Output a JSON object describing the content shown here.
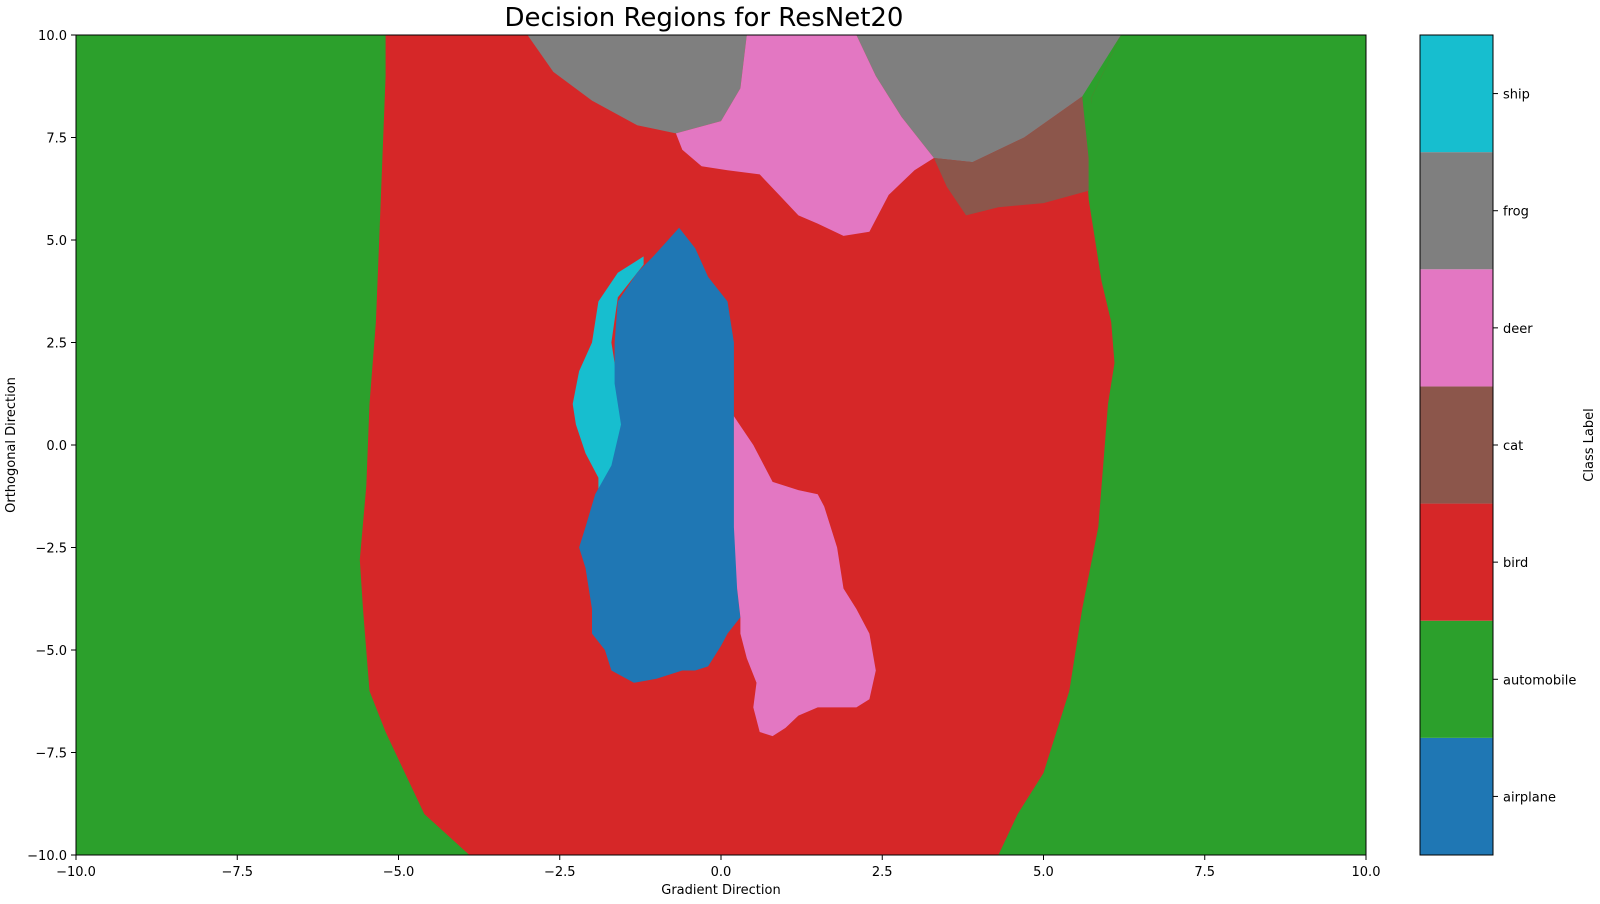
{
  "chart_data": {
    "type": "heatmap",
    "title": "Decision Regions for ResNet20",
    "xlabel": "Gradient Direction",
    "ylabel": "Orthogonal Direction",
    "xlim": [
      -10,
      10
    ],
    "ylim": [
      -10,
      10
    ],
    "x_ticks": [
      -10,
      -7.5,
      -5,
      -2.5,
      0,
      2.5,
      5,
      7.5,
      10
    ],
    "y_ticks": [
      -10,
      -7.5,
      -5,
      -2.5,
      0,
      2.5,
      5,
      7.5,
      10
    ],
    "x_tick_labels": [
      "−10.0",
      "−7.5",
      "−5.0",
      "−2.5",
      "0.0",
      "2.5",
      "5.0",
      "7.5",
      "10.0"
    ],
    "y_tick_labels": [
      "−10.0",
      "−7.5",
      "−5.0",
      "−2.5",
      "0.0",
      "2.5",
      "5.0",
      "7.5",
      "10.0"
    ],
    "grid": false,
    "colorbar": {
      "label": "Class Label",
      "classes": [
        {
          "name": "airplane",
          "color": "#1f77b4"
        },
        {
          "name": "automobile",
          "color": "#2ca02c"
        },
        {
          "name": "bird",
          "color": "#d62728"
        },
        {
          "name": "cat",
          "color": "#8c564b"
        },
        {
          "name": "deer",
          "color": "#e377c2"
        },
        {
          "name": "frog",
          "color": "#7f7f7f"
        },
        {
          "name": "ship",
          "color": "#17becf"
        }
      ]
    },
    "background_class": "automobile",
    "regions": [
      {
        "class": "bird",
        "polygon": [
          [
            -5.2,
            10
          ],
          [
            -5.2,
            9
          ],
          [
            -5.25,
            7
          ],
          [
            -5.3,
            5
          ],
          [
            -5.35,
            3
          ],
          [
            -5.45,
            1
          ],
          [
            -5.5,
            -1
          ],
          [
            -5.6,
            -2.8
          ],
          [
            -5.55,
            -4
          ],
          [
            -5.45,
            -6
          ],
          [
            -5.2,
            -7
          ],
          [
            -4.9,
            -8
          ],
          [
            -4.6,
            -9
          ],
          [
            -3.9,
            -10
          ],
          [
            4.3,
            -10
          ],
          [
            4.6,
            -9
          ],
          [
            5,
            -8
          ],
          [
            5.2,
            -7
          ],
          [
            5.4,
            -6
          ],
          [
            5.6,
            -4
          ],
          [
            5.85,
            -2
          ],
          [
            5.95,
            0
          ],
          [
            6.0,
            1
          ],
          [
            6.1,
            2
          ],
          [
            6.05,
            3
          ],
          [
            5.9,
            4
          ],
          [
            5.8,
            5
          ],
          [
            5.7,
            6
          ],
          [
            5.7,
            7
          ],
          [
            5.75,
            8.5
          ],
          [
            6.2,
            10
          ]
        ]
      },
      {
        "class": "automobile",
        "polygon": [
          [
            5.7,
            6
          ],
          [
            5.75,
            8.5
          ],
          [
            6.2,
            10
          ],
          [
            4.8,
            10
          ],
          [
            5.6,
            8.5
          ]
        ]
      },
      {
        "class": "frog",
        "polygon": [
          [
            -3,
            10
          ],
          [
            -2.6,
            9.1
          ],
          [
            -2.0,
            8.4
          ],
          [
            -1.3,
            7.8
          ],
          [
            -0.7,
            7.6
          ],
          [
            0,
            7.9
          ],
          [
            0.3,
            8.7
          ],
          [
            0.4,
            10
          ]
        ]
      },
      {
        "class": "frog",
        "polygon": [
          [
            2.1,
            10
          ],
          [
            2.4,
            9
          ],
          [
            2.8,
            8
          ],
          [
            3.3,
            7.0
          ],
          [
            3.9,
            6.9
          ],
          [
            4.7,
            7.5
          ],
          [
            5.6,
            8.5
          ],
          [
            6.2,
            10
          ]
        ]
      },
      {
        "class": "deer",
        "polygon": [
          [
            0.4,
            10
          ],
          [
            0.3,
            8.7
          ],
          [
            0,
            7.9
          ],
          [
            -0.7,
            7.6
          ],
          [
            -0.6,
            7.2
          ],
          [
            -0.3,
            6.8
          ],
          [
            0.1,
            6.7
          ],
          [
            0.6,
            6.6
          ],
          [
            0.9,
            6.1
          ],
          [
            1.2,
            5.6
          ],
          [
            1.5,
            5.4
          ],
          [
            1.9,
            5.1
          ],
          [
            2.3,
            5.2
          ],
          [
            2.6,
            6.1
          ],
          [
            3.0,
            6.7
          ],
          [
            3.3,
            7.0
          ],
          [
            2.8,
            8
          ],
          [
            2.4,
            9
          ],
          [
            2.1,
            10
          ]
        ]
      },
      {
        "class": "cat",
        "polygon": [
          [
            3.3,
            7.0
          ],
          [
            3.9,
            6.9
          ],
          [
            4.7,
            7.5
          ],
          [
            5.6,
            8.5
          ],
          [
            5.7,
            7
          ],
          [
            5.7,
            6.2
          ],
          [
            5.0,
            5.9
          ],
          [
            4.3,
            5.8
          ],
          [
            3.8,
            5.6
          ],
          [
            3.5,
            6.3
          ]
        ]
      },
      {
        "class": "ship",
        "polygon": [
          [
            -1.2,
            4.6
          ],
          [
            -1.6,
            4.2
          ],
          [
            -1.9,
            3.5
          ],
          [
            -2.0,
            2.5
          ],
          [
            -2.2,
            1.8
          ],
          [
            -2.3,
            1.0
          ],
          [
            -2.25,
            0.5
          ],
          [
            -2.1,
            -0.2
          ],
          [
            -1.9,
            -0.8
          ],
          [
            -1.9,
            -1.1
          ],
          [
            -1.6,
            -0.5
          ],
          [
            -1.5,
            0.5
          ],
          [
            -1.6,
            1.5
          ],
          [
            -1.7,
            2.5
          ],
          [
            -1.6,
            3.6
          ],
          [
            -1.2,
            4.4
          ]
        ]
      },
      {
        "class": "airplane",
        "polygon": [
          [
            -0.65,
            5.3
          ],
          [
            -0.4,
            4.8
          ],
          [
            -0.2,
            4.1
          ],
          [
            0.1,
            3.5
          ],
          [
            0.2,
            2.5
          ],
          [
            0.2,
            1.5
          ],
          [
            0.2,
            0
          ],
          [
            0.25,
            -1.5
          ],
          [
            0.25,
            -3.5
          ],
          [
            0.3,
            -4.2
          ],
          [
            0.1,
            -4.6
          ],
          [
            0,
            -4.9
          ],
          [
            -0.2,
            -5.4
          ],
          [
            -0.4,
            -5.5
          ],
          [
            -0.6,
            -5.5
          ],
          [
            -1,
            -5.7
          ],
          [
            -1.35,
            -5.8
          ],
          [
            -1.7,
            -5.5
          ],
          [
            -1.8,
            -5.0
          ],
          [
            -2.0,
            -4.6
          ],
          [
            -2.0,
            -4.0
          ],
          [
            -2.1,
            -3.0
          ],
          [
            -2.2,
            -2.5
          ],
          [
            -2.1,
            -2.0
          ],
          [
            -1.95,
            -1.2
          ],
          [
            -1.7,
            -0.5
          ],
          [
            -1.55,
            0.5
          ],
          [
            -1.65,
            1.5
          ],
          [
            -1.65,
            2.5
          ],
          [
            -1.6,
            3.5
          ],
          [
            -1.3,
            4.2
          ],
          [
            -1.05,
            4.6
          ]
        ]
      },
      {
        "class": "deer",
        "polygon": [
          [
            0.2,
            0.7
          ],
          [
            0.5,
            0
          ],
          [
            0.8,
            -0.9
          ],
          [
            1.2,
            -1.1
          ],
          [
            1.5,
            -1.2
          ],
          [
            1.6,
            -1.5
          ],
          [
            1.8,
            -2.5
          ],
          [
            1.9,
            -3.5
          ],
          [
            2.1,
            -4
          ],
          [
            2.3,
            -4.6
          ],
          [
            2.4,
            -5.5
          ],
          [
            2.3,
            -6.2
          ],
          [
            2.1,
            -6.4
          ],
          [
            1.5,
            -6.4
          ],
          [
            1.2,
            -6.6
          ],
          [
            1.0,
            -6.9
          ],
          [
            0.8,
            -7.1
          ],
          [
            0.6,
            -7.0
          ],
          [
            0.5,
            -6.4
          ],
          [
            0.55,
            -5.8
          ],
          [
            0.4,
            -5.2
          ],
          [
            0.3,
            -4.6
          ],
          [
            0.3,
            -4.2
          ],
          [
            0.25,
            -3.5
          ],
          [
            0.2,
            -2
          ],
          [
            0.2,
            0
          ]
        ]
      }
    ]
  }
}
